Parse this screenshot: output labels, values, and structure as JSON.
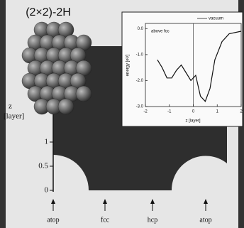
{
  "figure": {
    "title": "(2×2)-2H",
    "main": {
      "ylabel": [
        "z",
        "[layer]"
      ],
      "ylim": [
        0,
        3
      ],
      "yticks": [
        0,
        0.5,
        1
      ],
      "sites": [
        "atop",
        "fcc",
        "hcp",
        "atop"
      ]
    },
    "inset": {
      "ylabel": "energy [eV]",
      "xlabel": "z [layer]",
      "xlim": [
        -2,
        2
      ],
      "ylim": [
        -3,
        0.2
      ],
      "xticks": [
        -2,
        -1,
        0,
        1,
        2
      ],
      "yticks": [
        {
          "value": 0,
          "label": "0.0"
        },
        {
          "value": -1,
          "label": "-1.0"
        },
        {
          "value": -2,
          "label": "-2.0"
        },
        {
          "value": -3,
          "label": "-3.0"
        }
      ],
      "annotations": [
        "above fcc",
        "vacuum"
      ],
      "curve": {
        "x": [
          -1.5,
          -1.3,
          -1.1,
          -0.9,
          -0.7,
          -0.5,
          -0.3,
          -0.1,
          0.1,
          0.3,
          0.5,
          0.7,
          0.9,
          1.2,
          1.5,
          2
        ],
        "y": [
          -1.2,
          -1.5,
          -1.9,
          -1.9,
          -1.6,
          -1.4,
          -1.7,
          -2.0,
          -1.8,
          -2.6,
          -2.8,
          -2.3,
          -1.2,
          -0.5,
          -0.2,
          -0.1
        ]
      }
    }
  }
}
